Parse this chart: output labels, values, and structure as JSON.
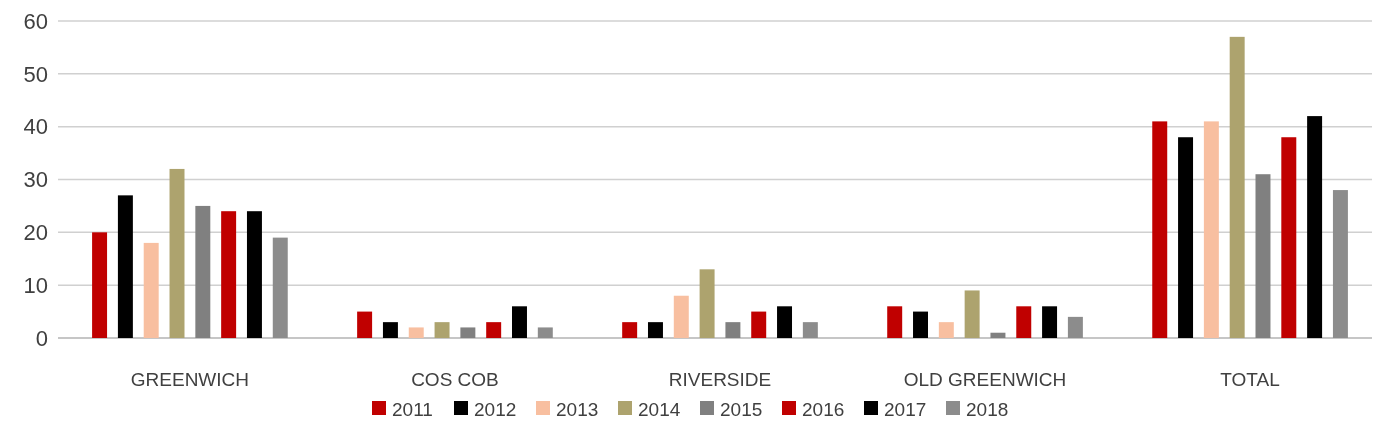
{
  "chart_data": {
    "type": "bar",
    "categories": [
      "GREENWICH",
      "COS COB",
      "RIVERSIDE",
      "OLD GREENWICH",
      "TOTAL"
    ],
    "series": [
      {
        "name": "2011",
        "color": "#c00000",
        "values": [
          20,
          5,
          3,
          6,
          41
        ]
      },
      {
        "name": "2012",
        "color": "#000000",
        "values": [
          27,
          3,
          3,
          5,
          38
        ]
      },
      {
        "name": "2013",
        "color": "#f8bfa0",
        "values": [
          18,
          2,
          8,
          3,
          41
        ]
      },
      {
        "name": "2014",
        "color": "#ada36e",
        "values": [
          32,
          3,
          13,
          9,
          57
        ]
      },
      {
        "name": "2015",
        "color": "#808080",
        "values": [
          25,
          2,
          3,
          1,
          31
        ]
      },
      {
        "name": "2016",
        "color": "#c00000",
        "values": [
          24,
          3,
          5,
          6,
          38
        ]
      },
      {
        "name": "2017",
        "color": "#000000",
        "values": [
          24,
          6,
          6,
          6,
          42
        ]
      },
      {
        "name": "2018",
        "color": "#8c8c8c",
        "values": [
          19,
          2,
          3,
          4,
          28
        ]
      }
    ],
    "ylim": [
      0,
      60
    ],
    "yticks": [
      0,
      10,
      20,
      30,
      40,
      50,
      60
    ],
    "grid": "y",
    "legend": "bottom"
  }
}
